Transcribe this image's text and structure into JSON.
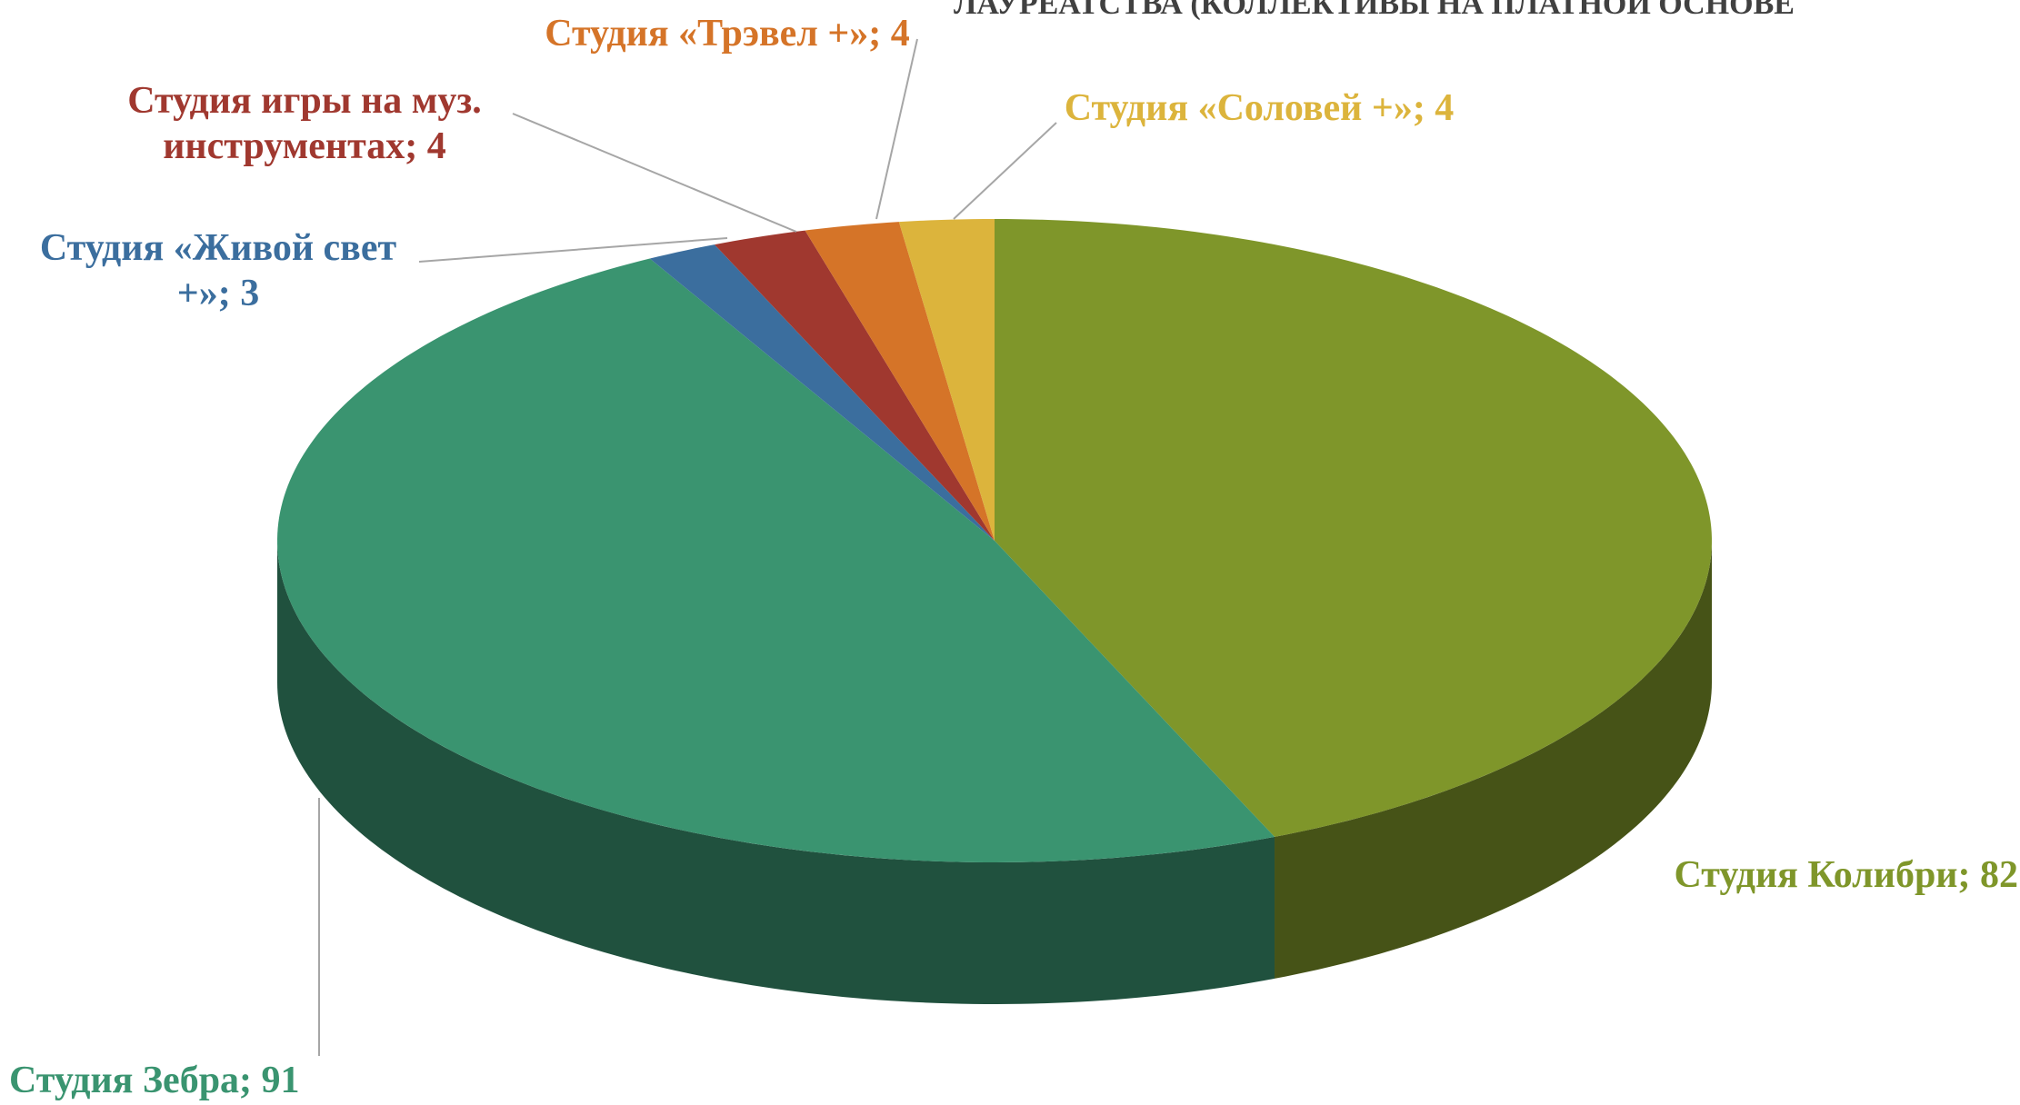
{
  "chart_data": {
    "type": "pie3d",
    "title": "ЛАУРЕАТСТВА (КОЛЛЕКТИВЫ НА ПЛАТНОЙ ОСНОВЕ",
    "values": [
      82,
      91,
      3,
      4,
      4,
      4
    ],
    "value_labels": [
      "Студия Колибри; 82",
      "Студия Зебра; 91",
      "Студия «Живой свет +»; 3",
      "Студия игры на муз. инструментах; 4",
      "Студия «Трэвел +»; 4",
      "Студия «Соловей +»; 4"
    ],
    "colors": [
      "#7f962a",
      "#3a9470",
      "#3b6e9e",
      "#a0382f",
      "#d57428",
      "#dcb43c"
    ]
  }
}
